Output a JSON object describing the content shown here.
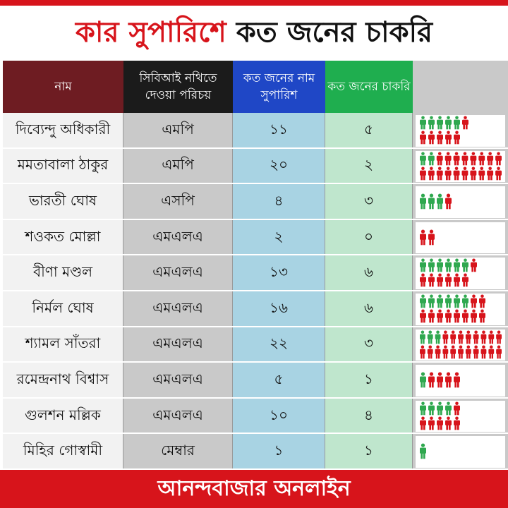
{
  "headline": {
    "part1": "কার সুপারিশে",
    "part2": "কত জনের চাকরি"
  },
  "footer": "আনন্দবাজার অনলাইন",
  "colors": {
    "job_icon": "#2fa84f",
    "recommend_icon": "#d7141b",
    "brand_red": "#d7141b"
  },
  "chart_data": {
    "type": "table",
    "columns": [
      "নাম",
      "সিবিআই নথিতে দেওয়া পরিচয়",
      "কত জনের নাম সুপারিশ",
      "কত জনের চাকরি"
    ],
    "rows": [
      {
        "name": "দিব্যেন্দু অধিকারী",
        "role": "এমপি",
        "recommended_label": "১১",
        "jobs_label": "৫",
        "recommended": 11,
        "jobs": 5
      },
      {
        "name": "মমতাবালা ঠাকুর",
        "role": "এমপি",
        "recommended_label": "২০",
        "jobs_label": "২",
        "recommended": 20,
        "jobs": 2
      },
      {
        "name": "ভারতী ঘোষ",
        "role": "এসপি",
        "recommended_label": "৪",
        "jobs_label": "৩",
        "recommended": 4,
        "jobs": 3
      },
      {
        "name": "শওকত মোল্লা",
        "role": "এমএলএ",
        "recommended_label": "২",
        "jobs_label": "০",
        "recommended": 2,
        "jobs": 0
      },
      {
        "name": "বীণা মণ্ডল",
        "role": "এমএলএ",
        "recommended_label": "১৩",
        "jobs_label": "৬",
        "recommended": 13,
        "jobs": 6
      },
      {
        "name": "নির্মল ঘোষ",
        "role": "এমএলএ",
        "recommended_label": "১৬",
        "jobs_label": "৬",
        "recommended": 16,
        "jobs": 6
      },
      {
        "name": "শ্যামল সাঁতরা",
        "role": "এমএলএ",
        "recommended_label": "২২",
        "jobs_label": "৩",
        "recommended": 22,
        "jobs": 3
      },
      {
        "name": "রমেন্দ্রনাথ বিশ্বাস",
        "role": "এমএলএ",
        "recommended_label": "৫",
        "jobs_label": "১",
        "recommended": 5,
        "jobs": 1
      },
      {
        "name": "গুলশন মল্লিক",
        "role": "এমএলএ",
        "recommended_label": "১০",
        "jobs_label": "৪",
        "recommended": 10,
        "jobs": 4
      },
      {
        "name": "মিহির গোস্বামী",
        "role": "মেম্বার",
        "recommended_label": "১",
        "jobs_label": "১",
        "recommended": 1,
        "jobs": 1
      }
    ]
  }
}
